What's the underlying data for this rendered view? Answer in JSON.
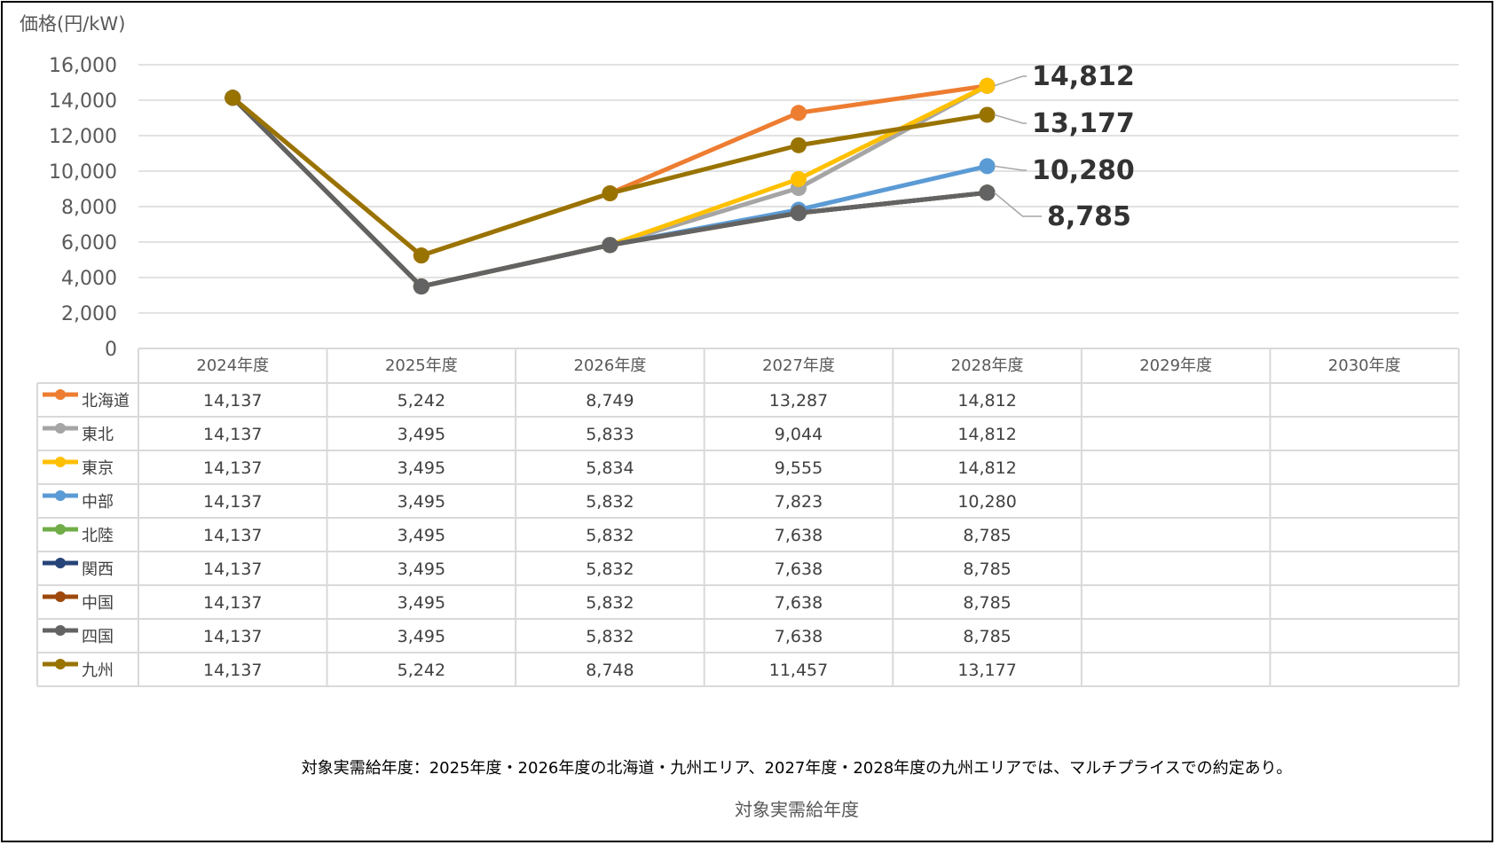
{
  "chart_data": {
    "type": "line",
    "title": "",
    "ylabel": "価格(円/kW)",
    "xlabel": "対象実需給年度",
    "ylim": [
      0,
      16000
    ],
    "yticks": [
      0,
      2000,
      4000,
      6000,
      8000,
      10000,
      12000,
      14000,
      16000
    ],
    "ytick_labels": [
      "0",
      "2,000",
      "4,000",
      "6,000",
      "8,000",
      "10,000",
      "12,000",
      "14,000",
      "16,000"
    ],
    "grid": true,
    "categories": [
      "2024年度",
      "2025年度",
      "2026年度",
      "2027年度",
      "2028年度",
      "2029年度",
      "2030年度"
    ],
    "series": [
      {
        "name": "北海道",
        "color": "#ED7D31",
        "values": [
          14137,
          5242,
          8749,
          13287,
          14812,
          null,
          null
        ],
        "labels": [
          "14,137",
          "5,242",
          "8,749",
          "13,287",
          "14,812",
          "",
          ""
        ]
      },
      {
        "name": "東北",
        "color": "#A5A5A5",
        "values": [
          14137,
          3495,
          5833,
          9044,
          14812,
          null,
          null
        ],
        "labels": [
          "14,137",
          "3,495",
          "5,833",
          "9,044",
          "14,812",
          "",
          ""
        ]
      },
      {
        "name": "東京",
        "color": "#FFC000",
        "values": [
          14137,
          3495,
          5834,
          9555,
          14812,
          null,
          null
        ],
        "labels": [
          "14,137",
          "3,495",
          "5,834",
          "9,555",
          "14,812",
          "",
          ""
        ]
      },
      {
        "name": "中部",
        "color": "#5B9BD5",
        "values": [
          14137,
          3495,
          5832,
          7823,
          10280,
          null,
          null
        ],
        "labels": [
          "14,137",
          "3,495",
          "5,832",
          "7,823",
          "10,280",
          "",
          ""
        ]
      },
      {
        "name": "北陸",
        "color": "#70AD47",
        "values": [
          14137,
          3495,
          5832,
          7638,
          8785,
          null,
          null
        ],
        "labels": [
          "14,137",
          "3,495",
          "5,832",
          "7,638",
          "8,785",
          "",
          ""
        ]
      },
      {
        "name": "関西",
        "color": "#264478",
        "values": [
          14137,
          3495,
          5832,
          7638,
          8785,
          null,
          null
        ],
        "labels": [
          "14,137",
          "3,495",
          "5,832",
          "7,638",
          "8,785",
          "",
          ""
        ]
      },
      {
        "name": "中国",
        "color": "#9E480E",
        "values": [
          14137,
          3495,
          5832,
          7638,
          8785,
          null,
          null
        ],
        "labels": [
          "14,137",
          "3,495",
          "5,832",
          "7,638",
          "8,785",
          "",
          ""
        ]
      },
      {
        "name": "四国",
        "color": "#636363",
        "values": [
          14137,
          3495,
          5832,
          7638,
          8785,
          null,
          null
        ],
        "labels": [
          "14,137",
          "3,495",
          "5,832",
          "7,638",
          "8,785",
          "",
          ""
        ]
      },
      {
        "name": "九州",
        "color": "#997300",
        "values": [
          14137,
          5242,
          8748,
          11457,
          13177,
          null,
          null
        ],
        "labels": [
          "14,137",
          "5,242",
          "8,748",
          "11,457",
          "13,177",
          "",
          ""
        ]
      }
    ],
    "callouts": [
      {
        "text": "14,812",
        "category": "2028年度",
        "value": 14812
      },
      {
        "text": "13,177",
        "category": "2028年度",
        "value": 13177
      },
      {
        "text": "10,280",
        "category": "2028年度",
        "value": 10280
      },
      {
        "text": "8,785",
        "category": "2028年度",
        "value": 8785
      }
    ],
    "legend": "data-table"
  },
  "footnote": "対象実需給年度：2025年度・2026年度の北海道・九州エリア、2027年度・2028年度の九州エリアでは、マルチプライスでの約定あり。"
}
